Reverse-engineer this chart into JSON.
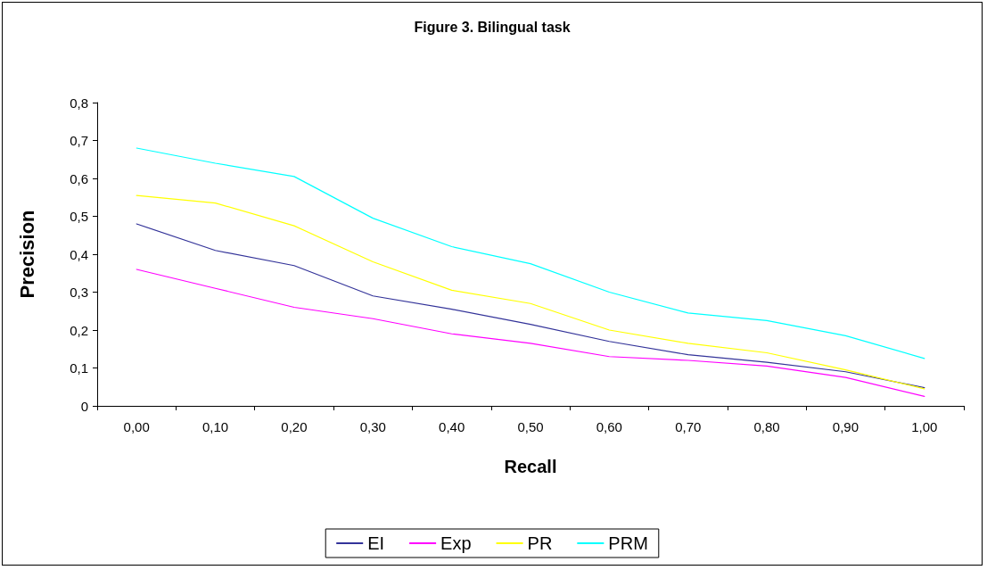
{
  "chart_data": {
    "type": "line",
    "title": "Figure 3. Bilingual task",
    "xlabel": "Recall",
    "ylabel": "Precision",
    "categories": [
      "0,00",
      "0,10",
      "0,20",
      "0,30",
      "0,40",
      "0,50",
      "0,60",
      "0,70",
      "0,80",
      "0,90",
      "1,00"
    ],
    "series": [
      {
        "name": "EI",
        "color": "#333399",
        "values": [
          0.48,
          0.41,
          0.37,
          0.29,
          0.255,
          0.215,
          0.17,
          0.135,
          0.115,
          0.09,
          0.048
        ]
      },
      {
        "name": "Exp",
        "color": "#ff00ff",
        "values": [
          0.36,
          0.31,
          0.26,
          0.23,
          0.19,
          0.165,
          0.13,
          0.12,
          0.105,
          0.075,
          0.025
        ]
      },
      {
        "name": "PR",
        "color": "#ffff00",
        "values": [
          0.555,
          0.535,
          0.475,
          0.38,
          0.305,
          0.27,
          0.2,
          0.165,
          0.14,
          0.095,
          0.045
        ]
      },
      {
        "name": "PRM",
        "color": "#00ffff",
        "values": [
          0.68,
          0.64,
          0.605,
          0.495,
          0.42,
          0.375,
          0.3,
          0.245,
          0.225,
          0.185,
          0.125
        ]
      }
    ],
    "ylim": [
      0,
      0.8
    ],
    "yticks": [
      0,
      {
        "value": 0.1,
        "label": "0,1"
      },
      {
        "value": 0.2,
        "label": "0,2"
      },
      {
        "value": 0.3,
        "label": "0,3"
      },
      {
        "value": 0.4,
        "label": "0,4"
      },
      {
        "value": 0.5,
        "label": "0,5"
      },
      {
        "value": 0.6,
        "label": "0,6"
      },
      {
        "value": 0.7,
        "label": "0,7"
      },
      {
        "value": 0.8,
        "label": "0,8"
      }
    ],
    "grid": false,
    "legend": "bottom",
    "marker": "none",
    "line_style": "solid"
  }
}
